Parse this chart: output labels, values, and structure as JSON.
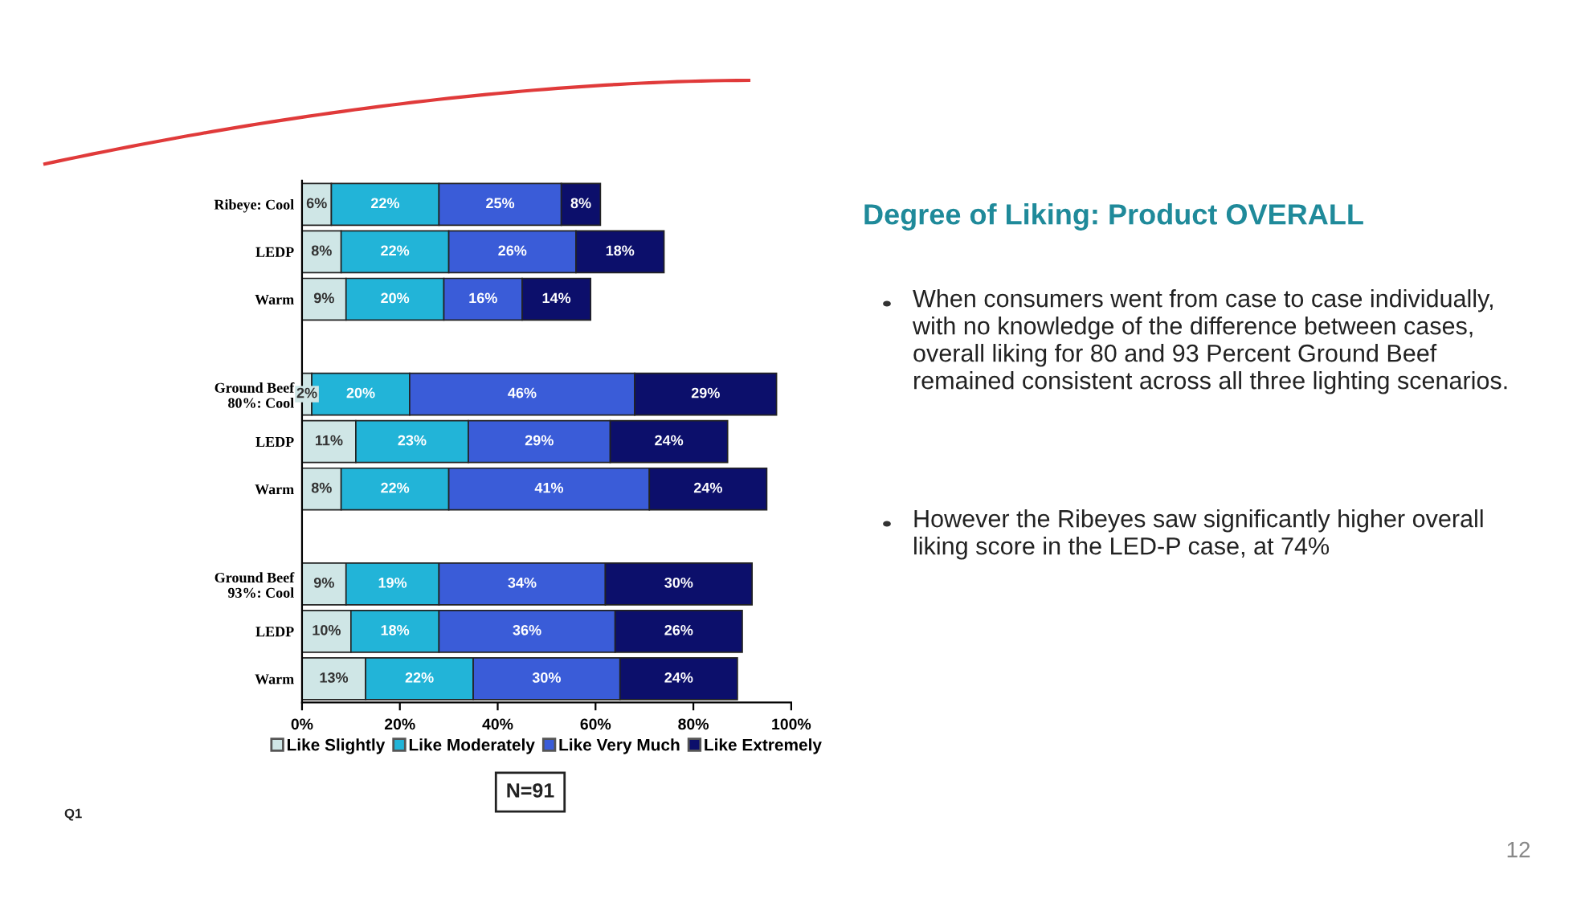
{
  "chart_data": {
    "type": "bar",
    "orientation": "horizontal",
    "stacked": true,
    "title": "Degree of Liking: Product OVERALL",
    "categories": [
      "Ribeye: Cool",
      "LEDP",
      "Warm",
      null,
      "Ground Beef\n80%: Cool",
      "LEDP",
      "Warm",
      null,
      "Ground Beef\n93%: Cool",
      "LEDP",
      "Warm"
    ],
    "series": [
      {
        "name": "Like Slightly",
        "color": "#cfe6e6",
        "values": [
          6,
          8,
          9,
          null,
          2,
          11,
          8,
          null,
          9,
          10,
          13
        ],
        "value_labels": [
          "6%",
          "8%",
          "9%",
          null,
          "2%",
          "11%",
          "8%",
          null,
          "9%",
          "10%",
          "13%"
        ]
      },
      {
        "name": "Like Moderately",
        "color": "#22b4d8",
        "values": [
          22,
          22,
          20,
          null,
          20,
          23,
          22,
          null,
          19,
          18,
          22
        ],
        "value_labels": [
          "22%",
          "22%",
          "20%",
          null,
          "20%",
          "23%",
          "22%",
          null,
          "19%",
          "18%",
          "22%"
        ]
      },
      {
        "name": "Like Very Much",
        "color": "#3a5cd8",
        "values": [
          25,
          26,
          16,
          null,
          46,
          29,
          41,
          null,
          34,
          36,
          30
        ],
        "value_labels": [
          "25%",
          "26%",
          "16%",
          null,
          "46%",
          "29%",
          "41%",
          null,
          "34%",
          "36%",
          "30%"
        ]
      },
      {
        "name": "Like Extremely",
        "color": "#0c0f6b",
        "values": [
          8,
          18,
          14,
          null,
          29,
          24,
          24,
          null,
          30,
          26,
          24
        ],
        "value_labels": [
          "8%",
          "18%",
          "14%",
          null,
          "29%",
          "24%",
          "24%",
          null,
          "30%",
          "26%",
          "24%"
        ]
      }
    ],
    "xlim": [
      0,
      100
    ],
    "xticks": [
      {
        "value": 0,
        "label": "0%"
      },
      {
        "value": 20,
        "label": "20%"
      },
      {
        "value": 40,
        "label": "40%"
      },
      {
        "value": 60,
        "label": "60%"
      },
      {
        "value": 80,
        "label": "80%"
      },
      {
        "value": 100,
        "label": "100%"
      }
    ],
    "legend": "bottom",
    "grid": false,
    "annotations": [
      "When consumers went from case to case individually, with no knowledge of the difference between cases,  overall liking for 80 and 93 Percent Ground Beef remained consistent across all three lighting scenarios.",
      "However the Ribeyes saw significantly higher overall liking score in the LED-P case, at 74%",
      "N=91",
      "Q1",
      "12"
    ]
  }
}
